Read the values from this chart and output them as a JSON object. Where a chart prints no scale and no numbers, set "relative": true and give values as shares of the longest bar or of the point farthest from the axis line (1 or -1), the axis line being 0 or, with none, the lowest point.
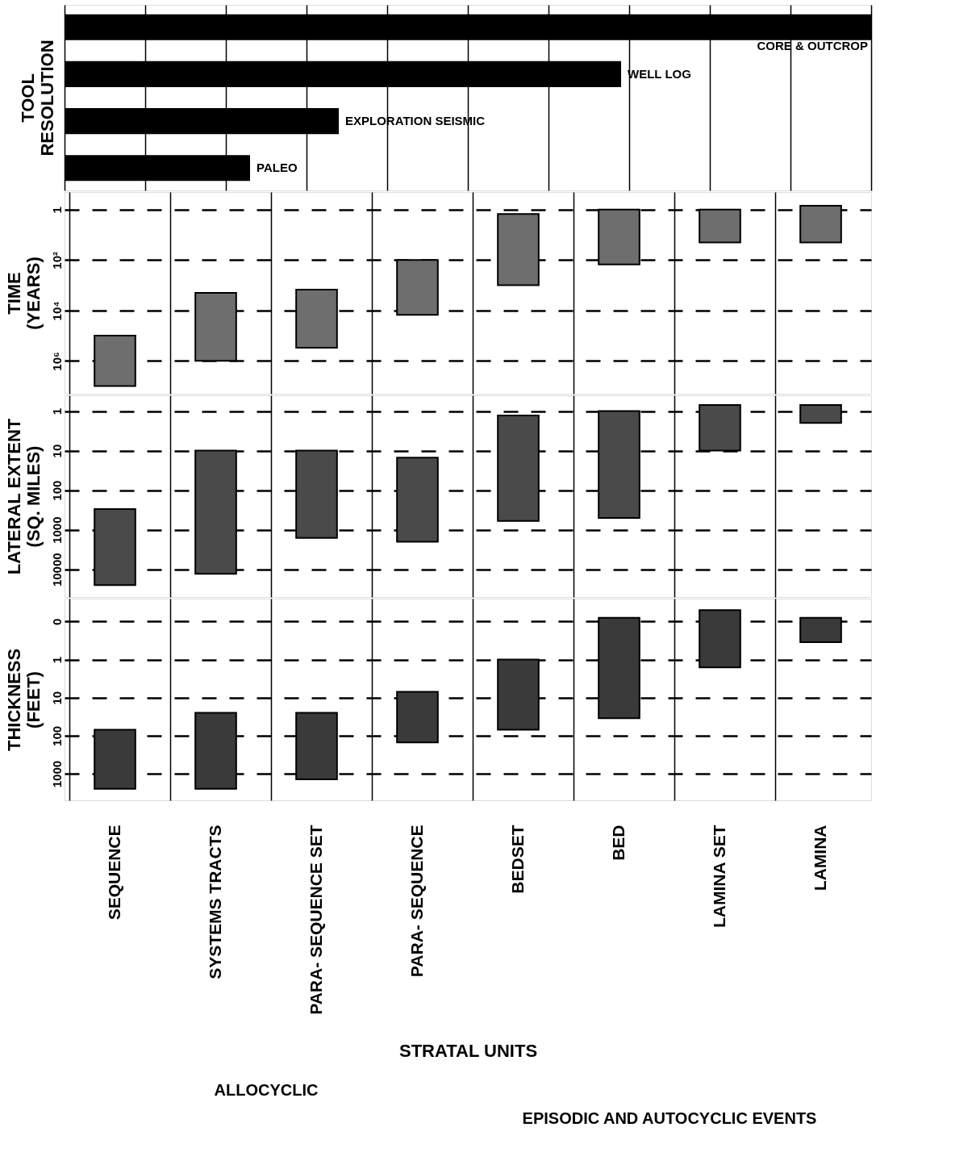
{
  "chart_data": [
    {
      "type": "bar",
      "orientation": "horizontal",
      "relative": true,
      "ylabel": "TOOL RESOLUTION",
      "categories": [
        "CORE & OUTCROP",
        "WELL LOG",
        "EXPLORATION SEISMIC",
        "PALEO"
      ],
      "values": [
        1,
        0.69,
        0.34,
        0.23
      ],
      "color": "#000000",
      "tick_labels": false,
      "grid": "x"
    },
    {
      "type": "bar",
      "ylabel": "TIME (YEARS)",
      "base": [
        100000,
        2000,
        1500,
        100,
        1.5,
        1,
        1,
        0.7
      ],
      "values": [
        9900000,
        998000,
        298500,
        14900,
        998.5,
        149,
        19,
        19.3
      ],
      "color": "#6e6e6e",
      "log": "y",
      "ylim": [
        20000000,
        0.2
      ],
      "yticks": [
        1,
        {
          "value": 100,
          "label": "10²"
        },
        {
          "value": 10000,
          "label": "10⁴"
        },
        {
          "value": 1000000,
          "label": "10⁶"
        }
      ],
      "grid": true,
      "tick_labels": "y"
    },
    {
      "type": "bar",
      "ylabel": "LATERAL EXTENT (SQ. MILES)",
      "base": [
        300,
        10,
        10,
        15,
        1.3,
        1,
        0.7,
        0.7
      ],
      "values": [
        24700,
        12990,
        1590,
        1985,
        598.7,
        499,
        9.3,
        1.3
      ],
      "color": "#4a4a4a",
      "log": "y",
      "ylim": [
        50000,
        0.4
      ],
      "yticks": [
        1,
        10,
        100,
        1000,
        10000
      ],
      "grid": true,
      "tick_labels": "y"
    },
    {
      "type": "bar",
      "ylabel": "THICKNESS (FEET)",
      "xlabel": "STRATAL UNITS",
      "categories": [
        "SEQUENCE",
        "SYSTEMS TRACTS",
        "PARA- SEQUENCE SET",
        "PARA- SEQUENCE",
        "BEDSET",
        "BED",
        "LAMINA SET",
        "LAMINA"
      ],
      "base": [
        70,
        25,
        25,
        7,
        1,
        0.08,
        0.05,
        0.08
      ],
      "values": [
        2430,
        2475,
        1375,
        143,
        69,
        34.92,
        1.55,
        0.27
      ],
      "color": "#3a3a3a",
      "log": "y",
      "ylim": [
        5000,
        0.025
      ],
      "yticks": [
        {
          "value": 0.1,
          "label": "0"
        },
        1,
        10,
        100,
        1000
      ],
      "grid": true,
      "annotations": [
        "ALLOCYCLIC",
        "EPISODIC AND AUTOCYCLIC EVENTS"
      ]
    }
  ]
}
